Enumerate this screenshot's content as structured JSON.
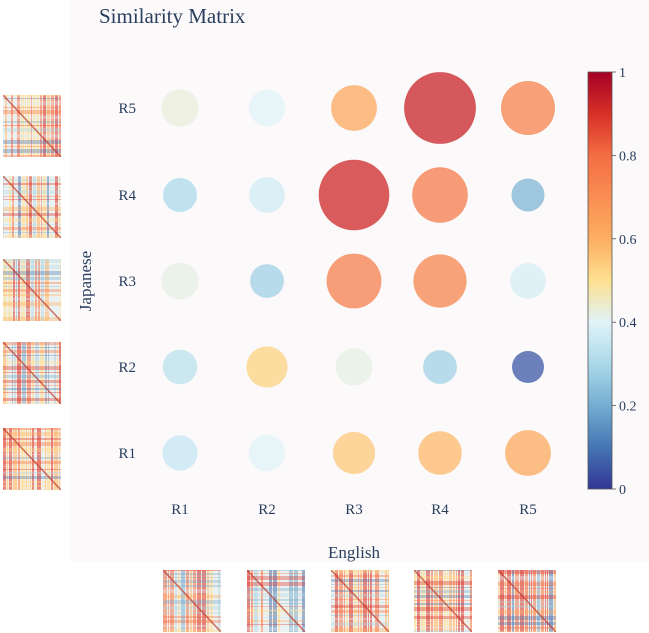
{
  "chart_data": {
    "type": "scatter",
    "title": "Similarity Matrix",
    "xlabel": "English",
    "ylabel": "Japanese",
    "x_categories": [
      "R1",
      "R2",
      "R3",
      "R4",
      "R5"
    ],
    "y_categories": [
      "R1",
      "R2",
      "R3",
      "R4",
      "R5"
    ],
    "colorbar": {
      "min": 0,
      "max": 1,
      "ticks": [
        "0",
        "0.2",
        "0.4",
        "0.6",
        "0.8",
        "1"
      ]
    },
    "points": [
      {
        "x": "R1",
        "y": "R1",
        "value": 0.35
      },
      {
        "x": "R2",
        "y": "R1",
        "value": 0.4
      },
      {
        "x": "R3",
        "y": "R1",
        "value": 0.55
      },
      {
        "x": "R4",
        "y": "R1",
        "value": 0.58
      },
      {
        "x": "R5",
        "y": "R1",
        "value": 0.62
      },
      {
        "x": "R1",
        "y": "R2",
        "value": 0.33
      },
      {
        "x": "R2",
        "y": "R2",
        "value": 0.53
      },
      {
        "x": "R3",
        "y": "R2",
        "value": 0.42
      },
      {
        "x": "R4",
        "y": "R2",
        "value": 0.28
      },
      {
        "x": "R5",
        "y": "R2",
        "value": 0.05
      },
      {
        "x": "R1",
        "y": "R3",
        "value": 0.42
      },
      {
        "x": "R2",
        "y": "R3",
        "value": 0.28
      },
      {
        "x": "R3",
        "y": "R3",
        "value": 0.75
      },
      {
        "x": "R4",
        "y": "R3",
        "value": 0.73
      },
      {
        "x": "R5",
        "y": "R3",
        "value": 0.38
      },
      {
        "x": "R1",
        "y": "R4",
        "value": 0.3
      },
      {
        "x": "R2",
        "y": "R4",
        "value": 0.37
      },
      {
        "x": "R3",
        "y": "R4",
        "value": 0.92
      },
      {
        "x": "R4",
        "y": "R4",
        "value": 0.76
      },
      {
        "x": "R5",
        "y": "R4",
        "value": 0.22
      },
      {
        "x": "R1",
        "y": "R5",
        "value": 0.43
      },
      {
        "x": "R2",
        "y": "R5",
        "value": 0.4
      },
      {
        "x": "R3",
        "y": "R5",
        "value": 0.62
      },
      {
        "x": "R4",
        "y": "R5",
        "value": 0.93
      },
      {
        "x": "R5",
        "y": "R5",
        "value": 0.74
      }
    ]
  },
  "thumbnails": {
    "left": [
      "japanese-r5",
      "japanese-r4",
      "japanese-r3",
      "japanese-r2",
      "japanese-r1"
    ],
    "bottom": [
      "english-r1",
      "english-r2",
      "english-r3",
      "english-r4",
      "english-r5"
    ]
  }
}
